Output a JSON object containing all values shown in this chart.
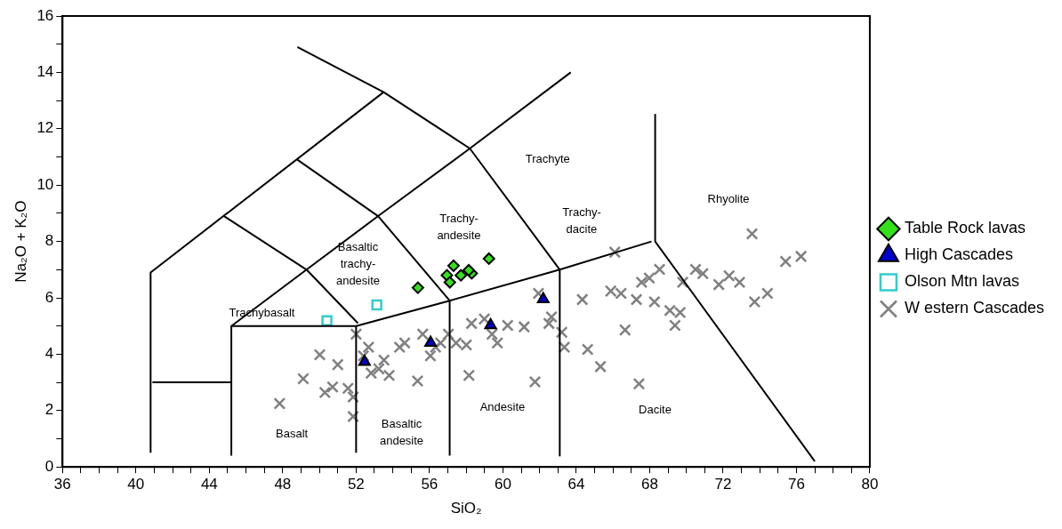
{
  "chart_data": {
    "type": "scatter",
    "xlabel": "SiO₂",
    "ylabel": "Na₂O + K₂O",
    "xlim": [
      36,
      80
    ],
    "xticks": [
      36,
      {
        "value": 37,
        "label": null
      },
      {
        "value": 38,
        "label": null
      },
      {
        "value": 39,
        "label": null
      },
      40,
      {
        "value": 41,
        "label": null
      },
      {
        "value": 42,
        "label": null
      },
      {
        "value": 43,
        "label": null
      },
      44,
      {
        "value": 45,
        "label": null
      },
      {
        "value": 46,
        "label": null
      },
      {
        "value": 47,
        "label": null
      },
      48,
      {
        "value": 49,
        "label": null
      },
      {
        "value": 50,
        "label": null
      },
      {
        "value": 51,
        "label": null
      },
      52,
      {
        "value": 53,
        "label": null
      },
      {
        "value": 54,
        "label": null
      },
      {
        "value": 55,
        "label": null
      },
      56,
      {
        "value": 57,
        "label": null
      },
      {
        "value": 58,
        "label": null
      },
      {
        "value": 59,
        "label": null
      },
      60,
      {
        "value": 61,
        "label": null
      },
      {
        "value": 62,
        "label": null
      },
      {
        "value": 63,
        "label": null
      },
      64,
      {
        "value": 65,
        "label": null
      },
      {
        "value": 66,
        "label": null
      },
      {
        "value": 67,
        "label": null
      },
      68,
      {
        "value": 69,
        "label": null
      },
      {
        "value": 70,
        "label": null
      },
      {
        "value": 71,
        "label": null
      },
      72,
      {
        "value": 73,
        "label": null
      },
      {
        "value": 74,
        "label": null
      },
      {
        "value": 75,
        "label": null
      },
      76,
      {
        "value": 77,
        "label": null
      },
      {
        "value": 78,
        "label": null
      },
      {
        "value": 79,
        "label": null
      },
      80
    ],
    "ylim": [
      0,
      16
    ],
    "yticks": [
      0,
      {
        "value": 1,
        "label": null
      },
      2,
      {
        "value": 3,
        "label": null
      },
      4,
      {
        "value": 5,
        "label": null
      },
      6,
      {
        "value": 7,
        "label": null
      },
      8,
      {
        "value": 9,
        "label": null
      },
      10,
      {
        "value": 11,
        "label": null
      },
      12,
      {
        "value": 13,
        "label": null
      },
      14,
      {
        "value": 15,
        "label": null
      },
      16
    ],
    "grid": false,
    "legend": "right",
    "series": [
      {
        "type": "line",
        "color": "#000000",
        "x": [
          40.8,
          40.8,
          53.5
        ],
        "values": [
          0.5,
          6.9,
          13.3
        ]
      },
      {
        "type": "line",
        "color": "#000000",
        "x": [
          48.8,
          53.5,
          58.2,
          63.1,
          63.1
        ],
        "values": [
          14.9,
          13.3,
          11.3,
          7.0,
          0.4
        ]
      },
      {
        "type": "line",
        "color": "#000000",
        "x": [
          63.7,
          58.2,
          53.2,
          49.3,
          45.2,
          52.0,
          57.1,
          63.1,
          68.1
        ],
        "values": [
          14.0,
          11.3,
          8.9,
          7.0,
          5.0,
          5.0,
          5.9,
          7.0,
          8.0
        ]
      },
      {
        "type": "line",
        "color": "#000000",
        "x": [
          45.2,
          45.2
        ],
        "values": [
          0.4,
          5.0
        ]
      },
      {
        "type": "line",
        "color": "#000000",
        "x": [
          52.0,
          52.0
        ],
        "values": [
          0.5,
          5.0
        ]
      },
      {
        "type": "line",
        "color": "#000000",
        "x": [
          57.1,
          57.1
        ],
        "values": [
          0.4,
          5.9
        ]
      },
      {
        "type": "line",
        "color": "#000000",
        "x": [
          40.9,
          45.2
        ],
        "values": [
          3.0,
          3.0
        ]
      },
      {
        "type": "line",
        "color": "#000000",
        "x": [
          44.8,
          49.3,
          52.1
        ],
        "values": [
          8.9,
          7.0,
          5.1
        ]
      },
      {
        "type": "line",
        "color": "#000000",
        "x": [
          48.8,
          53.2,
          57.1
        ],
        "values": [
          10.9,
          8.9,
          5.9
        ]
      },
      {
        "type": "line",
        "color": "#000000",
        "x": [
          68.3,
          68.3,
          77.0
        ],
        "values": [
          12.5,
          8.0,
          0.2
        ]
      },
      {
        "type": "scatter",
        "name": "Table Rock lavas",
        "color": "#33e01a",
        "marker": "diamond",
        "x": [
          55.37,
          59.24,
          57.31,
          56.95,
          58.3,
          57.71,
          57.11,
          58.14
        ],
        "values": [
          6.36,
          7.39,
          7.14,
          6.8,
          6.87,
          6.8,
          6.55,
          6.98
        ]
      },
      {
        "type": "scatter",
        "name": "High Cascades",
        "color": "#0000cc",
        "marker": "triangle",
        "x": [
          62.2,
          59.33,
          56.06,
          52.46
        ],
        "values": [
          5.95,
          5.03,
          4.41,
          3.73
        ]
      },
      {
        "type": "scatter",
        "name": "Olson Mtn lavas",
        "color": "#33cccc",
        "marker": "square",
        "x": [
          53.13,
          50.41
        ],
        "values": [
          5.75,
          5.19
        ]
      },
      {
        "type": "scatter",
        "name": "W estern Cascades",
        "color": "#808080",
        "marker": "cross",
        "x": [
          47.83,
          49.12,
          50.02,
          50.3,
          50.72,
          51.0,
          51.56,
          51.84,
          51.84,
          52.0,
          52.4,
          52.68,
          52.82,
          53.24,
          53.52,
          53.8,
          54.37,
          54.65,
          55.35,
          55.63,
          56.05,
          56.33,
          56.61,
          57.03,
          57.45,
          58.01,
          58.15,
          58.29,
          58.99,
          59.41,
          59.7,
          60.26,
          61.16,
          61.75,
          61.94,
          62.51,
          62.65,
          63.21,
          63.35,
          64.33,
          64.62,
          65.32,
          66.1,
          65.88,
          66.44,
          66.66,
          67.28,
          67.42,
          67.56,
          67.98,
          68.26,
          68.54,
          69.1,
          69.38,
          69.66,
          69.8,
          70.5,
          70.9,
          71.77,
          72.33,
          72.9,
          73.58,
          73.72,
          74.42,
          75.41,
          76.25
        ],
        "values": [
          2.25,
          3.13,
          3.98,
          2.64,
          2.84,
          3.63,
          2.79,
          1.79,
          2.48,
          4.71,
          3.94,
          4.25,
          3.33,
          3.48,
          3.79,
          3.25,
          4.25,
          4.4,
          3.05,
          4.71,
          3.94,
          4.25,
          4.4,
          4.71,
          4.4,
          4.33,
          3.25,
          5.09,
          5.25,
          4.71,
          4.4,
          5.02,
          4.97,
          3.02,
          6.16,
          5.09,
          5.32,
          4.78,
          4.25,
          5.94,
          4.17,
          3.56,
          7.62,
          6.24,
          6.16,
          4.86,
          5.94,
          2.95,
          6.55,
          6.7,
          5.86,
          7.01,
          5.55,
          5.02,
          5.48,
          6.55,
          7.01,
          6.86,
          6.47,
          6.78,
          6.55,
          8.27,
          5.86,
          6.16,
          7.29,
          7.47
        ]
      }
    ],
    "annotations": [
      "Trachyte",
      "Rhyolite",
      "Trachy-\ndacite",
      "Trachy-\nandesite",
      "Basaltic\ntrachy-\nandesite",
      "Trachybasalt",
      "Basalt",
      "Basaltic\nandesite",
      "Andesite",
      "Dacite"
    ]
  }
}
